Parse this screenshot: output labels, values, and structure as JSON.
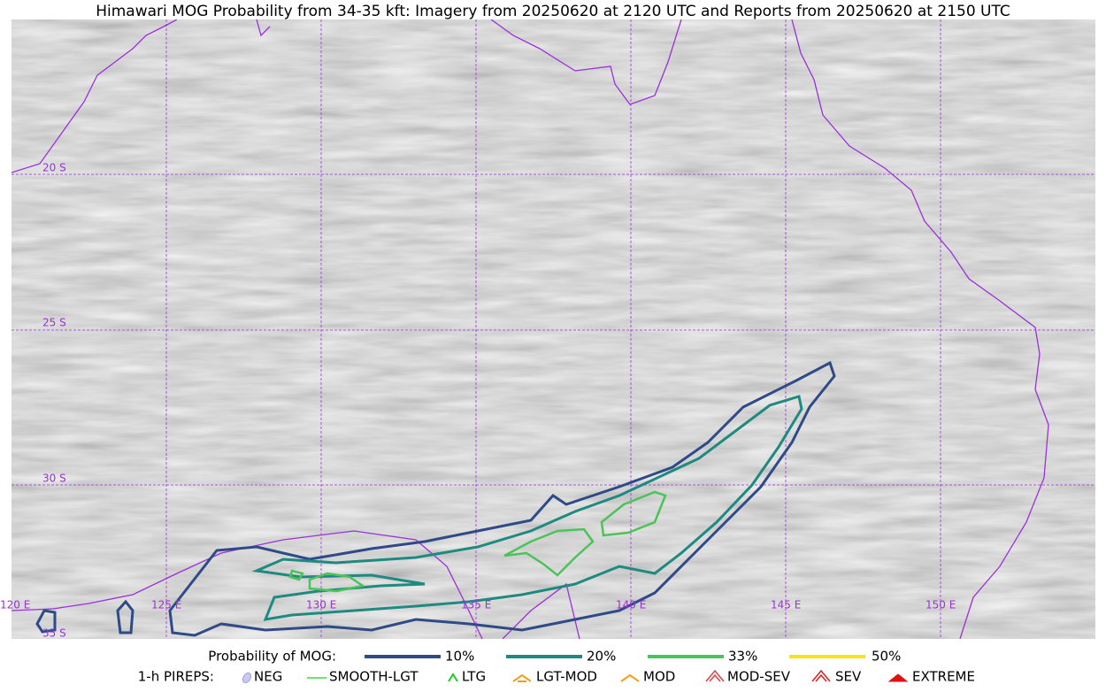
{
  "title": "Himawari MOG Probability from 34-35 kft: Imagery from 20250620 at 2120 UTC and Reports from 20250620 at 2150 UTC",
  "map": {
    "lat_labels": [
      "20 S",
      "25 S",
      "30 S",
      "35 S"
    ],
    "lon_labels": [
      "120 E",
      "125 E",
      "130 E",
      "135 E",
      "140 E",
      "145 E",
      "150 E"
    ]
  },
  "legend": {
    "probability": {
      "title": "Probability of MOG:",
      "items": [
        "10%",
        "20%",
        "33%",
        "50%"
      ]
    },
    "pireps": {
      "title": "1-h PIREPS:",
      "items": [
        "NEG",
        "SMOOTH-LGT",
        "LTG",
        "LGT-MOD",
        "MOD",
        "MOD-SEV",
        "SEV",
        "EXTREME"
      ]
    }
  }
}
